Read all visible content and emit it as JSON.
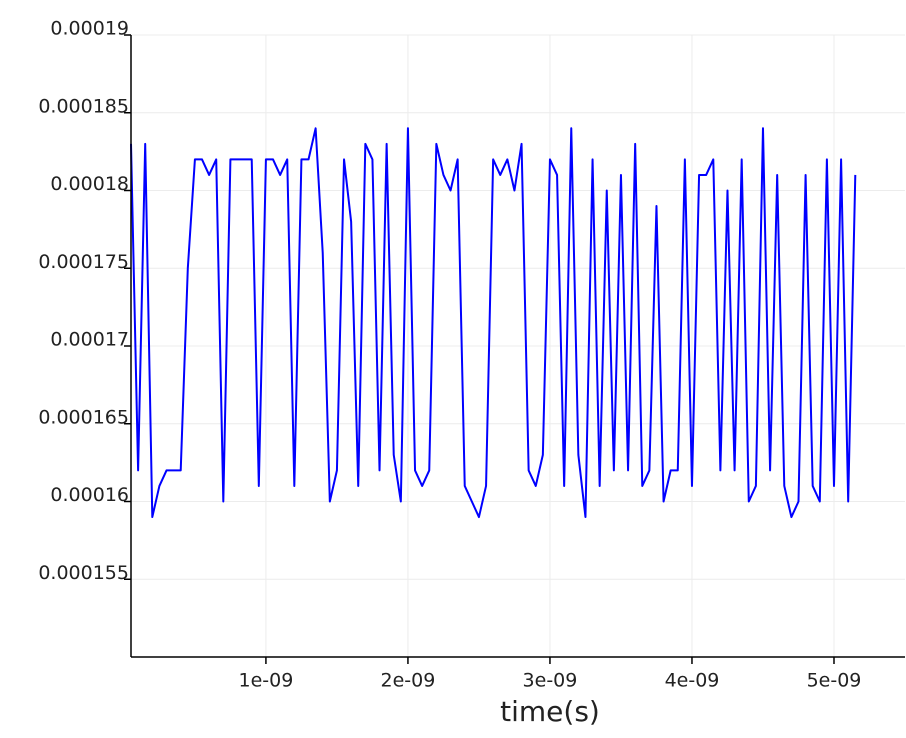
{
  "chart_data": {
    "type": "line",
    "x_label": "time(s)",
    "color": "#0000ff",
    "grid": true,
    "x": [
      5e-11,
      1e-10,
      1.5e-10,
      2e-10,
      2.5e-10,
      3e-10,
      3.5e-10,
      4e-10,
      4.5e-10,
      5e-10,
      5.5e-10,
      6e-10,
      6.5e-10,
      7e-10,
      7.5e-10,
      8e-10,
      8.5e-10,
      9e-10,
      9.5e-10,
      1e-09,
      1.05e-09,
      1.1e-09,
      1.15e-09,
      1.2e-09,
      1.25e-09,
      1.3e-09,
      1.35e-09,
      1.4e-09,
      1.45e-09,
      1.5e-09,
      1.55e-09,
      1.6e-09,
      1.65e-09,
      1.7e-09,
      1.75e-09,
      1.8e-09,
      1.85e-09,
      1.9e-09,
      1.95e-09,
      2e-09,
      2.05e-09,
      2.1e-09,
      2.15e-09,
      2.2e-09,
      2.25e-09,
      2.3e-09,
      2.35e-09,
      2.4e-09,
      2.45e-09,
      2.5e-09,
      2.55e-09,
      2.6e-09,
      2.65e-09,
      2.7e-09,
      2.75e-09,
      2.8e-09,
      2.85e-09,
      2.9e-09,
      2.95e-09,
      3e-09,
      3.05e-09,
      3.1e-09,
      3.15e-09,
      3.2e-09,
      3.25e-09,
      3.3e-09,
      3.35e-09,
      3.4e-09,
      3.45e-09,
      3.5e-09,
      3.55e-09,
      3.6e-09,
      3.65e-09,
      3.7e-09,
      3.75e-09,
      3.8e-09,
      3.85e-09,
      3.9e-09,
      3.95e-09,
      4e-09,
      4.05e-09,
      4.1e-09,
      4.15e-09,
      4.2e-09,
      4.25e-09,
      4.3e-09,
      4.35e-09,
      4.4e-09,
      4.45e-09,
      4.5e-09,
      4.55e-09,
      4.6e-09,
      4.65e-09,
      4.7e-09,
      4.75e-09,
      4.8e-09,
      4.85e-09,
      4.9e-09,
      4.95e-09,
      5e-09,
      5.05e-09,
      5.1e-09,
      5.15e-09
    ],
    "values": [
      0.000183,
      0.000162,
      0.000183,
      0.000159,
      0.000161,
      0.000162,
      0.000162,
      0.000162,
      0.000175,
      0.000182,
      0.000182,
      0.000181,
      0.000182,
      0.00016,
      0.000182,
      0.000182,
      0.000182,
      0.000182,
      0.000161,
      0.000182,
      0.000182,
      0.000181,
      0.000182,
      0.000161,
      0.000182,
      0.000182,
      0.000184,
      0.000176,
      0.00016,
      0.000162,
      0.000182,
      0.000178,
      0.000161,
      0.000183,
      0.000182,
      0.000162,
      0.000183,
      0.000163,
      0.00016,
      0.000184,
      0.000162,
      0.000161,
      0.000162,
      0.000183,
      0.000181,
      0.00018,
      0.000182,
      0.000161,
      0.00016,
      0.000159,
      0.000161,
      0.000182,
      0.000181,
      0.000182,
      0.00018,
      0.000183,
      0.000162,
      0.000161,
      0.000163,
      0.000182,
      0.000181,
      0.000161,
      0.000184,
      0.000163,
      0.000159,
      0.000182,
      0.000161,
      0.00018,
      0.000162,
      0.000181,
      0.000162,
      0.000183,
      0.000161,
      0.000162,
      0.000179,
      0.00016,
      0.000162,
      0.000162,
      0.000182,
      0.000161,
      0.000181,
      0.000181,
      0.000182,
      0.000162,
      0.00018,
      0.000162,
      0.000182,
      0.00016,
      0.000161,
      0.000184,
      0.000162,
      0.000181,
      0.000161,
      0.000159,
      0.00016,
      0.000181,
      0.000161,
      0.00016,
      0.000182,
      0.000161,
      0.000182,
      0.00016,
      0.000181
    ],
    "xlim": [
      5e-11,
      5.5e-09
    ],
    "ylim": [
      0.00015,
      0.00019
    ],
    "xticks": [
      {
        "value": 1e-09,
        "label": "1e-09"
      },
      {
        "value": 2e-09,
        "label": "2e-09"
      },
      {
        "value": 3e-09,
        "label": "3e-09"
      },
      {
        "value": 4e-09,
        "label": "4e-09"
      },
      {
        "value": 5e-09,
        "label": "5e-09"
      }
    ],
    "yticks": [
      0.000155,
      0.00016,
      0.000165,
      0.00017,
      0.000175,
      0.00018,
      0.000185,
      0.00019
    ]
  }
}
